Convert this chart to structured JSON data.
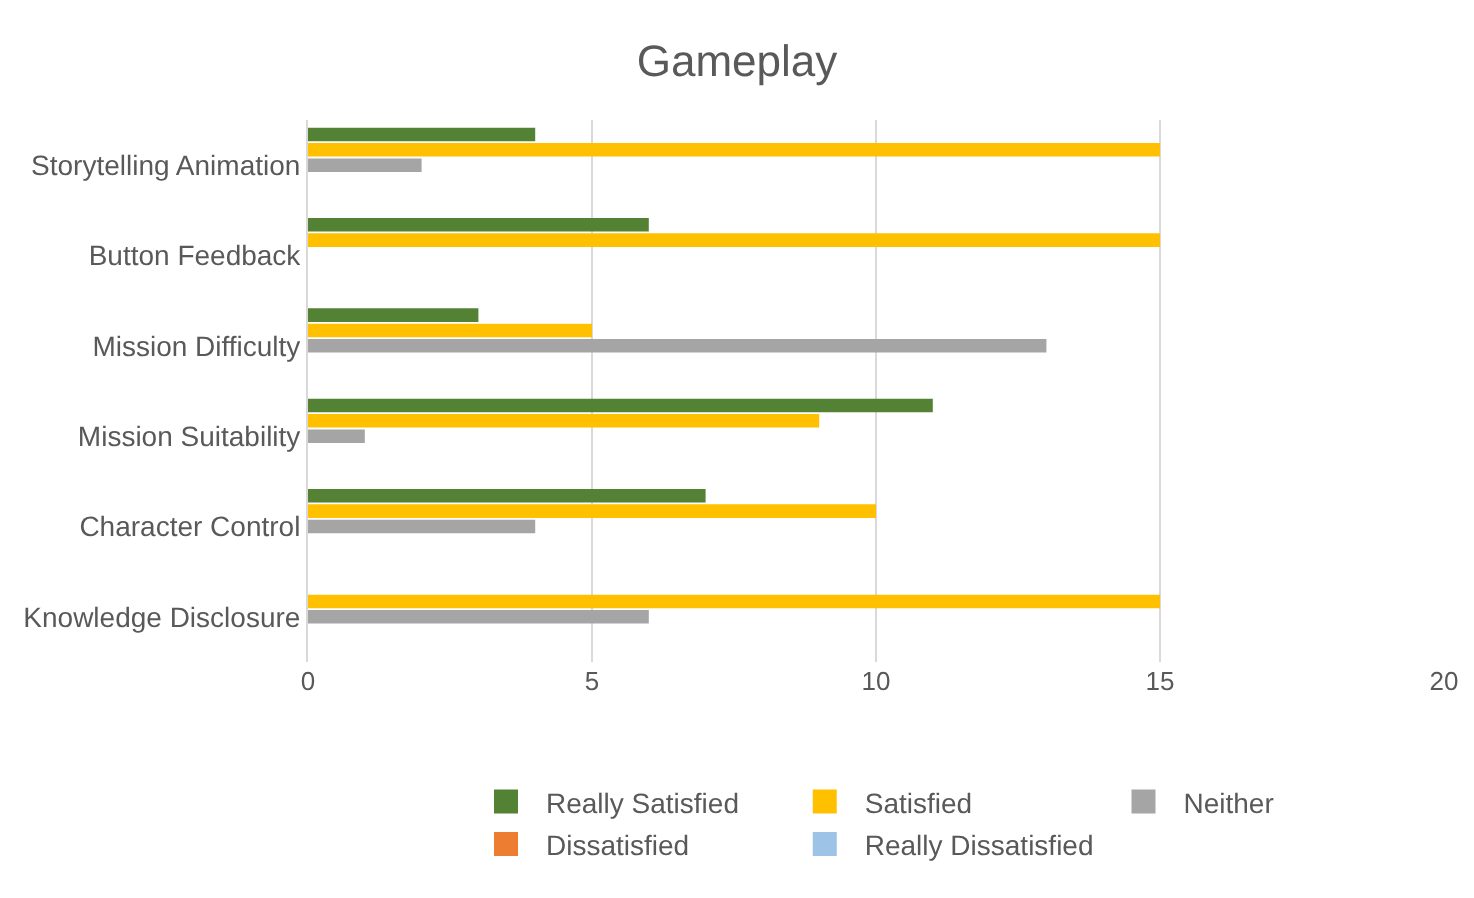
{
  "chart_data": {
    "type": "bar",
    "orientation": "horizontal",
    "title": "Gameplay",
    "categories": [
      "Storytelling Animation",
      "Button Feedback",
      "Mission Difficulty",
      "Mission Suitability",
      "Character Control",
      "Knowledge Disclosure"
    ],
    "series": [
      {
        "name": "Really Satisfied",
        "color": "#548235",
        "values": [
          4,
          6,
          3,
          11,
          7,
          0
        ]
      },
      {
        "name": "Satisfied",
        "color": "#ffc000",
        "values": [
          15,
          15,
          5,
          9,
          10,
          15
        ]
      },
      {
        "name": "Neither",
        "color": "#a5a5a5",
        "values": [
          2,
          0,
          13,
          1,
          4,
          6
        ]
      },
      {
        "name": "Dissatisfied",
        "color": "#ed7d31",
        "values": [
          0,
          0,
          0,
          0,
          0,
          0
        ]
      },
      {
        "name": "Really Dissatisfied",
        "color": "#9dc3e6",
        "values": [
          0,
          0,
          0,
          0,
          0,
          0
        ]
      }
    ],
    "xlim": [
      0,
      20
    ],
    "xticks": [
      0,
      5,
      10,
      15,
      20
    ],
    "grid": "x",
    "legend": "bottom"
  }
}
